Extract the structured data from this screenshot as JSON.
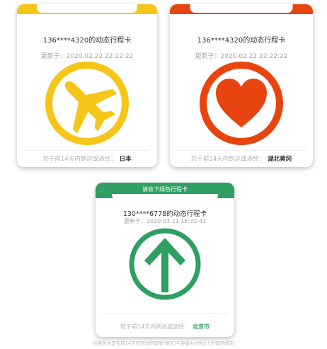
{
  "colors": {
    "yellow": "#f5c518",
    "red": "#e84410",
    "green": "#2f9f62",
    "muted_text": "#a4a4a4",
    "dark_text": "#333333"
  },
  "cards": [
    {
      "phone_title": "136****4320的动态行程卡",
      "updated": "更新于：2020.02.22 22:22:22",
      "icon": "airplane-icon",
      "footer_prefix": "您于前14天内到达或途经：",
      "footer_region": "日本"
    },
    {
      "phone_title": "136****4320的动态行程卡",
      "updated": "更新于：2020.02.22 22:22:22",
      "icon": "heart-icon",
      "footer_prefix": "您于前14天内到达或途经：",
      "footer_region": "湖北黄冈"
    },
    {
      "banner": "请收下绿色行程卡",
      "phone_title": "130****6778的动态行程卡",
      "updated": "更新于：2020.03.11 15:32:43",
      "icon": "arrow-up-icon",
      "footer_prefix": "您于前14天内到达或途经：",
      "footer_region": "北京市"
    }
  ],
  "bottom_note": "结果包含您在前14天内到访的国家(地区)与停留4小时以上的国内城市"
}
